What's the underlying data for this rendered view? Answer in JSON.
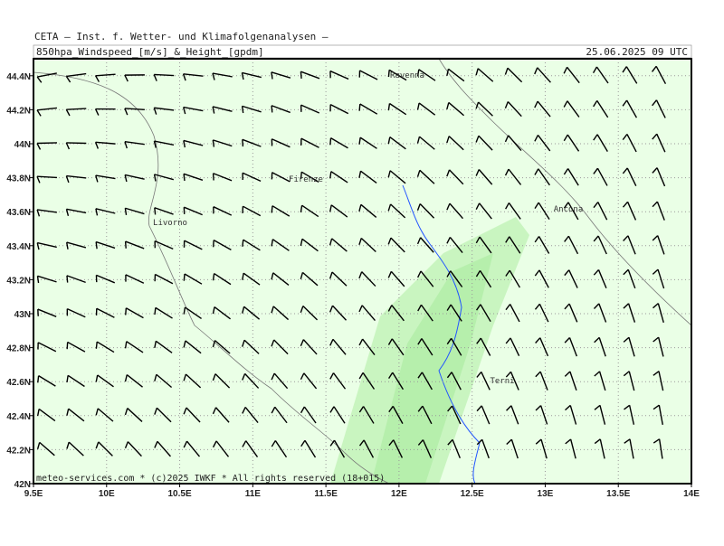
{
  "header": {
    "institute": "CETA – Inst. f. Wetter- und Klimafolgenanalysen –",
    "title": "850hpa_Windspeed_[m/s]_&_Height_[gpdm]",
    "valid_time": "25.06.2025 09 UTC"
  },
  "footer": "meteo-services.com * (c)2025 IWKF * All rights reserved (18+015)",
  "map": {
    "xlim": [
      9.5,
      14
    ],
    "ylim": [
      42,
      44.5
    ],
    "xticks": [
      {
        "value": 9.5,
        "label": "9.5E"
      },
      {
        "value": 10,
        "label": "10E"
      },
      {
        "value": 10.5,
        "label": "10.5E"
      },
      {
        "value": 11,
        "label": "11E"
      },
      {
        "value": 11.5,
        "label": "11.5E"
      },
      {
        "value": 12,
        "label": "12E"
      },
      {
        "value": 12.5,
        "label": "12.5E"
      },
      {
        "value": 13,
        "label": "13E"
      },
      {
        "value": 13.5,
        "label": "13.5E"
      },
      {
        "value": 14,
        "label": "14E"
      }
    ],
    "yticks": [
      {
        "value": 42,
        "label": "42N"
      },
      {
        "value": 42.2,
        "label": "42.2N"
      },
      {
        "value": 42.4,
        "label": "42.4N"
      },
      {
        "value": 42.6,
        "label": "42.6N"
      },
      {
        "value": 42.8,
        "label": "42.8N"
      },
      {
        "value": 43,
        "label": "43N"
      },
      {
        "value": 43.2,
        "label": "43.2N"
      },
      {
        "value": 43.4,
        "label": "43.4N"
      },
      {
        "value": 43.6,
        "label": "43.6N"
      },
      {
        "value": 43.8,
        "label": "43.8N"
      },
      {
        "value": 44,
        "label": "44N"
      },
      {
        "value": 44.2,
        "label": "44.2N"
      },
      {
        "value": 44.4,
        "label": "44.4N"
      }
    ],
    "cities": [
      "Ravenna",
      "Firenze",
      "Livorno",
      "Ancona",
      "Terni"
    ]
  }
}
